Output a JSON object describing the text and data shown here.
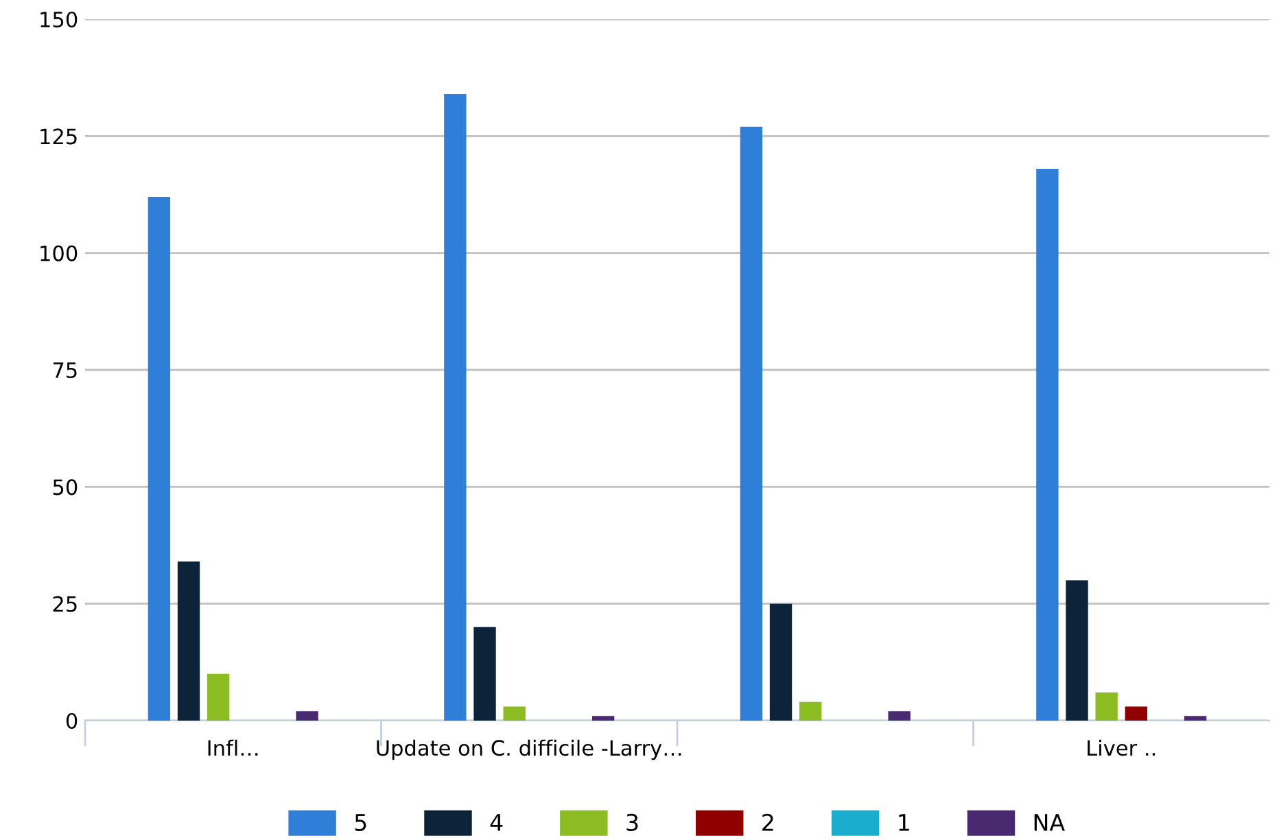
{
  "chart_data": {
    "type": "bar",
    "categories": [
      "Infl…",
      "Update on C. difficile -Larry…",
      null,
      "Liver .."
    ],
    "series": [
      {
        "name": "5",
        "color": "#2f7ed8",
        "values": [
          112,
          134,
          127,
          118
        ]
      },
      {
        "name": "4",
        "color": "#0d233a",
        "values": [
          34,
          20,
          25,
          30
        ]
      },
      {
        "name": "3",
        "color": "#8bbc21",
        "values": [
          10,
          3,
          4,
          6
        ]
      },
      {
        "name": "2",
        "color": "#910000",
        "values": [
          0,
          0,
          0,
          3
        ]
      },
      {
        "name": "1",
        "color": "#1aadce",
        "values": [
          0,
          0,
          0,
          0
        ]
      },
      {
        "name": "NA",
        "color": "#492970",
        "values": [
          2,
          1,
          2,
          1
        ]
      }
    ],
    "ylim": [
      0,
      150
    ],
    "yticks": [
      0,
      25,
      50,
      75,
      100,
      125,
      150
    ],
    "grid": "y",
    "legend": "bottom"
  }
}
